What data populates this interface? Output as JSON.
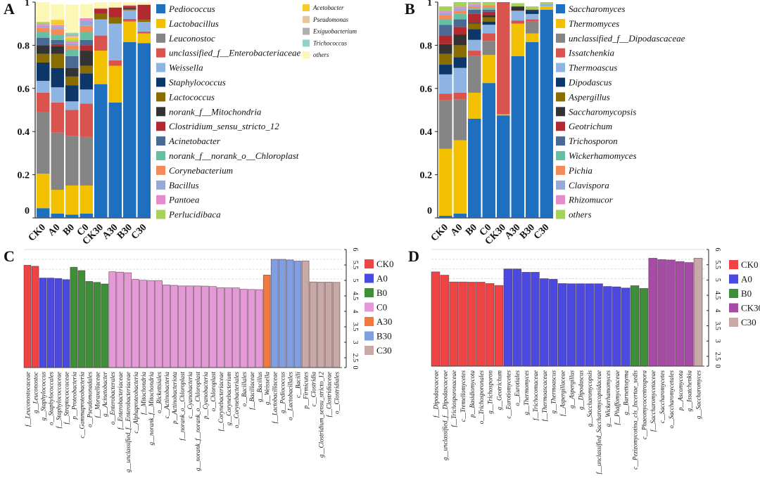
{
  "chart_data": [
    {
      "panel": "A",
      "type": "bar",
      "stacked": true,
      "title": "",
      "xlabel": "",
      "ylabel": "",
      "ylim": [
        0,
        1
      ],
      "yticks": [
        "0",
        "0.2",
        "0.4",
        "0.6",
        "0.8",
        "1"
      ],
      "categories": [
        "CK0",
        "A0",
        "B0",
        "C0",
        "CK30",
        "A30",
        "B30",
        "C30"
      ],
      "legend": "right",
      "series": [
        {
          "name": "Pediococcus",
          "color": "#1f6fbf",
          "values": [
            0.045,
            0.02,
            0.015,
            0.02,
            0.62,
            0.535,
            0.815,
            0.81
          ]
        },
        {
          "name": "Lactobacillus",
          "color": "#f2c000",
          "values": [
            0.16,
            0.11,
            0.135,
            0.13,
            0.155,
            0.17,
            0.095,
            0.045
          ]
        },
        {
          "name": "Leuconostoc",
          "color": "#858585",
          "values": [
            0.285,
            0.265,
            0.23,
            0.225,
            0,
            0,
            0,
            0
          ]
        },
        {
          "name": "unclassified_f__Enterobacteriaceae",
          "color": "#d9534f",
          "values": [
            0.09,
            0.14,
            0.12,
            0.155,
            0.07,
            0.025,
            0.012,
            0.008
          ]
        },
        {
          "name": "Weissella",
          "color": "#8eb4e3",
          "values": [
            0.055,
            0.07,
            0.04,
            0.065,
            0.075,
            0.17,
            0.04,
            0.045
          ]
        },
        {
          "name": "Staphylococcus",
          "color": "#0d3768",
          "values": [
            0.085,
            0.09,
            0.075,
            0.075,
            0,
            0,
            0,
            0
          ]
        },
        {
          "name": "Lactococcus",
          "color": "#8a6d00",
          "values": [
            0.04,
            0.065,
            0.04,
            0.035,
            0.025,
            0.03,
            0.005,
            0.01
          ]
        },
        {
          "name": "norank_f__Mitochondria",
          "color": "#333333",
          "values": [
            0.04,
            0.035,
            0.04,
            0.07,
            0,
            0,
            0.004,
            0
          ]
        },
        {
          "name": "Clostridium_sensu_stricto_12",
          "color": "#b22a2f",
          "values": [
            0,
            0.01,
            0,
            0.025,
            0.025,
            0.045,
            0.012,
            0.07
          ]
        },
        {
          "name": "Acinetobacter",
          "color": "#4a6a94",
          "values": [
            0.035,
            0.02,
            0.055,
            0.025,
            0,
            0,
            0,
            0
          ]
        },
        {
          "name": "norank_f__norank_o__Chloroplast",
          "color": "#66bfa3",
          "values": [
            0.025,
            0.025,
            0.03,
            0.035,
            0,
            0,
            0,
            0
          ]
        },
        {
          "name": "Corynebacterium",
          "color": "#f28a5a",
          "values": [
            0.02,
            0.025,
            0.02,
            0.03,
            0,
            0,
            0,
            0
          ]
        },
        {
          "name": "Bacillus",
          "color": "#98a8d6",
          "values": [
            0.01,
            0.01,
            0.01,
            0.025,
            0,
            0,
            0,
            0
          ]
        },
        {
          "name": "Pantoea",
          "color": "#e58bc9",
          "values": [
            0.008,
            0.008,
            0.008,
            0.01,
            0,
            0,
            0,
            0
          ]
        },
        {
          "name": "Perlucidibaca",
          "color": "#a6d15a",
          "values": [
            0.01,
            0,
            0.008,
            0,
            0,
            0,
            0,
            0
          ]
        },
        {
          "name": "Acetobacter",
          "color": "#f5cc2e",
          "values": [
            0,
            0.025,
            0.008,
            0,
            0,
            0,
            0,
            0
          ]
        },
        {
          "name": "Pseudomonas",
          "color": "#e7c69c",
          "values": [
            0,
            0,
            0.008,
            0,
            0,
            0,
            0.005,
            0
          ]
        },
        {
          "name": "Exiguobacterium",
          "color": "#b0b0b0",
          "values": [
            0,
            0,
            0.008,
            0,
            0,
            0,
            0,
            0
          ]
        },
        {
          "name": "Trichococcus",
          "color": "#8fd3c6",
          "values": [
            0,
            0,
            0.008,
            0,
            0,
            0,
            0,
            0
          ]
        },
        {
          "name": "others",
          "color": "#fdf7b6",
          "values": [
            0.092,
            0.072,
            0.13,
            0.065,
            0.03,
            0.025,
            0.012,
            0.012
          ]
        }
      ]
    },
    {
      "panel": "B",
      "type": "bar",
      "stacked": true,
      "title": "",
      "xlabel": "",
      "ylabel": "",
      "ylim": [
        0,
        1
      ],
      "yticks": [
        "0",
        "0.2",
        "0.4",
        "0.6",
        "0.8",
        "1"
      ],
      "categories": [
        "CK0",
        "A0",
        "B0",
        "C0",
        "CK30",
        "A30",
        "B30",
        "C30"
      ],
      "legend": "right",
      "series": [
        {
          "name": "Saccharomyces",
          "color": "#1f6fbf",
          "values": [
            0.01,
            0.02,
            0.46,
            0.625,
            0.475,
            0.75,
            0.815,
            0.965
          ]
        },
        {
          "name": "Thermomyces",
          "color": "#f2c000",
          "values": [
            0.31,
            0.34,
            0.12,
            0.13,
            0.005,
            0.15,
            0.04,
            0.015
          ]
        },
        {
          "name": "unclassified_f__Dipodascaceae",
          "color": "#858585",
          "values": [
            0.225,
            0.19,
            0.17,
            0.065,
            0,
            0,
            0.055,
            0
          ]
        },
        {
          "name": "Issatchenkia",
          "color": "#d9534f",
          "values": [
            0.03,
            0.03,
            0.025,
            0.035,
            0.52,
            0.015,
            0.01,
            0
          ]
        },
        {
          "name": "Thermoascus",
          "color": "#8eb4e3",
          "values": [
            0.09,
            0.115,
            0.05,
            0.04,
            0,
            0.045,
            0.025,
            0.005
          ]
        },
        {
          "name": "Dipodascus",
          "color": "#0d3768",
          "values": [
            0.045,
            0.05,
            0.05,
            0.015,
            0,
            0,
            0.015,
            0
          ]
        },
        {
          "name": "Aspergillus",
          "color": "#8a6d00",
          "values": [
            0.05,
            0.055,
            0.025,
            0.02,
            0,
            0,
            0,
            0
          ]
        },
        {
          "name": "Saccharomycopsis",
          "color": "#333333",
          "values": [
            0.045,
            0.05,
            0.005,
            0.01,
            0,
            0.02,
            0.005,
            0
          ]
        },
        {
          "name": "Geotrichum",
          "color": "#b22a2f",
          "values": [
            0.04,
            0.035,
            0.04,
            0.015,
            0,
            0,
            0,
            0
          ]
        },
        {
          "name": "Trichosporon",
          "color": "#4a6a94",
          "values": [
            0.05,
            0.035,
            0.02,
            0.01,
            0,
            0,
            0,
            0
          ]
        },
        {
          "name": "Wickerhamomyces",
          "color": "#66bfa3",
          "values": [
            0.025,
            0.025,
            0.005,
            0.01,
            0,
            0,
            0,
            0
          ]
        },
        {
          "name": "Pichia",
          "color": "#f28a5a",
          "values": [
            0.02,
            0.015,
            0.01,
            0.01,
            0,
            0,
            0,
            0
          ]
        },
        {
          "name": "Clavispora",
          "color": "#98a8d6",
          "values": [
            0.01,
            0.01,
            0.005,
            0,
            0,
            0,
            0,
            0.005
          ]
        },
        {
          "name": "Rhizomucor",
          "color": "#e58bc9",
          "values": [
            0.01,
            0.01,
            0.005,
            0,
            0,
            0,
            0,
            0
          ]
        },
        {
          "name": "others",
          "color": "#a6d15a",
          "values": [
            0.02,
            0.02,
            0.01,
            0.015,
            0,
            0.015,
            0.015,
            0.01
          ]
        }
      ]
    },
    {
      "panel": "C",
      "type": "bar",
      "orientation": "vertical",
      "xlabel": "",
      "ylabel": "",
      "ylim": [
        0,
        6
      ],
      "yticks": [
        "0",
        "2.5",
        "3",
        "3.5",
        "4",
        "4.5",
        "5",
        "5.5",
        "6"
      ],
      "axis_side": "right",
      "grid": true,
      "legend": "right",
      "groups": [
        {
          "name": "CK0",
          "color": "#ef4444"
        },
        {
          "name": "A0",
          "color": "#4a4ae0"
        },
        {
          "name": "B0",
          "color": "#3f8f3a"
        },
        {
          "name": "C0",
          "color": "#e59ad8"
        },
        {
          "name": "A30",
          "color": "#ee7a3f"
        },
        {
          "name": "B30",
          "color": "#7f9fe0"
        },
        {
          "name": "C30",
          "color": "#c7a9a6"
        }
      ],
      "bars": [
        {
          "label": "f__Leuconostocaceae",
          "group": "CK0",
          "value": 5.2
        },
        {
          "label": "g__Leuconostoc",
          "group": "CK0",
          "value": 5.15
        },
        {
          "label": "g__Staphylococcus",
          "group": "A0",
          "value": 4.55
        },
        {
          "label": "o__Staphylococcales",
          "group": "A0",
          "value": 4.55
        },
        {
          "label": "f__Staphylococcaceae",
          "group": "A0",
          "value": 4.53
        },
        {
          "label": "f__Streptococcaceae",
          "group": "A0",
          "value": 4.47
        },
        {
          "label": "p__Proteobacteria",
          "group": "B0",
          "value": 5.1
        },
        {
          "label": "c__Gammaproteobacteria",
          "group": "B0",
          "value": 4.93
        },
        {
          "label": "o__Pseudomonadales",
          "group": "B0",
          "value": 4.38
        },
        {
          "label": "f__Moraxellaceae",
          "group": "B0",
          "value": 4.33
        },
        {
          "label": "g__Acinetobacter",
          "group": "B0",
          "value": 4.25
        },
        {
          "label": "o__Enterobacterales",
          "group": "C0",
          "value": 4.87
        },
        {
          "label": "f__Enterobacteriaceae",
          "group": "C0",
          "value": 4.85
        },
        {
          "label": "g__unclassified_f__Enterobacteriaceae",
          "group": "C0",
          "value": 4.82
        },
        {
          "label": "c__Alphaproteobacteria",
          "group": "C0",
          "value": 4.48
        },
        {
          "label": "f__Mitochondria",
          "group": "C0",
          "value": 4.44
        },
        {
          "label": "g__norank_f__Mitochondria",
          "group": "C0",
          "value": 4.42
        },
        {
          "label": "o__Rickettsiales",
          "group": "C0",
          "value": 4.42
        },
        {
          "label": "c__Actinobacteria",
          "group": "C0",
          "value": 4.2
        },
        {
          "label": "p__Actinobacteriota",
          "group": "C0",
          "value": 4.18
        },
        {
          "label": "f__norank_o__Chloroplast",
          "group": "C0",
          "value": 4.15
        },
        {
          "label": "c__Cyanobacteria",
          "group": "C0",
          "value": 4.15
        },
        {
          "label": "g__norank_f__norank_o__Chloroplast",
          "group": "C0",
          "value": 4.15
        },
        {
          "label": "p__Cyanobacteria",
          "group": "C0",
          "value": 4.14
        },
        {
          "label": "o__Chloroplast",
          "group": "C0",
          "value": 4.12
        },
        {
          "label": "f__Corynebacteriaceae",
          "group": "C0",
          "value": 4.06
        },
        {
          "label": "g__Corynebacterium",
          "group": "C0",
          "value": 4.05
        },
        {
          "label": "o__Corynebacteriales",
          "group": "C0",
          "value": 4.05
        },
        {
          "label": "o__Bacillales",
          "group": "C0",
          "value": 3.98
        },
        {
          "label": "f__Bacillaceae",
          "group": "C0",
          "value": 3.97
        },
        {
          "label": "g__Bacillus",
          "group": "C0",
          "value": 3.96
        },
        {
          "label": "g__Weissella",
          "group": "A30",
          "value": 4.7
        },
        {
          "label": "f__Lactobacillaceae",
          "group": "B30",
          "value": 5.5
        },
        {
          "label": "g__Pediococcus",
          "group": "B30",
          "value": 5.5
        },
        {
          "label": "o__Lactobacillales",
          "group": "B30",
          "value": 5.47
        },
        {
          "label": "c__Bacilli",
          "group": "B30",
          "value": 5.41
        },
        {
          "label": "p__Firmicutes",
          "group": "C30",
          "value": 5.42
        },
        {
          "label": "c__Clostridia",
          "group": "C30",
          "value": 4.35
        },
        {
          "label": "g__Clostridium_sensu_stricto_12",
          "group": "C30",
          "value": 4.34
        },
        {
          "label": "f__Clostridiaceae",
          "group": "C30",
          "value": 4.34
        },
        {
          "label": "o__Clostridiales",
          "group": "C30",
          "value": 4.33
        }
      ]
    },
    {
      "panel": "D",
      "type": "bar",
      "orientation": "vertical",
      "xlabel": "",
      "ylabel": "",
      "ylim": [
        0,
        6
      ],
      "yticks": [
        "0",
        "2.5",
        "3",
        "3.5",
        "4",
        "4.5",
        "5",
        "5.5",
        "6"
      ],
      "axis_side": "right",
      "grid": true,
      "legend": "right",
      "groups": [
        {
          "name": "CK0",
          "color": "#ef4444"
        },
        {
          "name": "A0",
          "color": "#4a4ae0"
        },
        {
          "name": "B0",
          "color": "#3f8f3a"
        },
        {
          "name": "CK30",
          "color": "#a64ca6"
        },
        {
          "name": "C30",
          "color": "#c7a9a6"
        }
      ],
      "bars": [
        {
          "label": "f__Dipodascaceae",
          "group": "CK0",
          "value": 4.85
        },
        {
          "label": "g__unclassified_f__Dipodascaceae",
          "group": "CK0",
          "value": 4.68
        },
        {
          "label": "f__Trichosporonaceae",
          "group": "CK0",
          "value": 4.33
        },
        {
          "label": "c__Tremellomycetes",
          "group": "CK0",
          "value": 4.33
        },
        {
          "label": "p__Basidiomycota",
          "group": "CK0",
          "value": 4.32
        },
        {
          "label": "o__Trichosporonales",
          "group": "CK0",
          "value": 4.32
        },
        {
          "label": "g__Trichosporon",
          "group": "CK0",
          "value": 4.25
        },
        {
          "label": "g__Geotrichum",
          "group": "CK0",
          "value": 4.15
        },
        {
          "label": "c__Eurotiomycetes",
          "group": "A0",
          "value": 5.0
        },
        {
          "label": "o__Eurotiales",
          "group": "A0",
          "value": 5.0
        },
        {
          "label": "g__Thermomyces",
          "group": "A0",
          "value": 4.83
        },
        {
          "label": "f__Trichocomaceae",
          "group": "A0",
          "value": 4.83
        },
        {
          "label": "f__Thermoascaceae",
          "group": "A0",
          "value": 4.5
        },
        {
          "label": "g__Thermoascus",
          "group": "A0",
          "value": 4.47
        },
        {
          "label": "f__Aspergillaceae",
          "group": "A0",
          "value": 4.25
        },
        {
          "label": "g__Aspergillus",
          "group": "A0",
          "value": 4.24
        },
        {
          "label": "g__Dipodascus",
          "group": "A0",
          "value": 4.24
        },
        {
          "label": "g__Saccharomycopsis",
          "group": "A0",
          "value": 4.24
        },
        {
          "label": "f__unclassified_Saccharomycopsidaceae",
          "group": "A0",
          "value": 4.24
        },
        {
          "label": "g__Wickerhamomyces",
          "group": "A0",
          "value": 4.1
        },
        {
          "label": "f__Phaffomycetaceae",
          "group": "A0",
          "value": 4.08
        },
        {
          "label": "g__Barnettozyma",
          "group": "A0",
          "value": 4.02
        },
        {
          "label": "c__Pezizomycotina_cls_Incertae_sedis",
          "group": "B0",
          "value": 4.14
        },
        {
          "label": "c__Phaeomycocentrospora",
          "group": "B0",
          "value": 4.0
        },
        {
          "label": "f__Saccharomycetaceae",
          "group": "CK30",
          "value": 5.55
        },
        {
          "label": "c__Saccharomycetes",
          "group": "CK30",
          "value": 5.48
        },
        {
          "label": "o__Saccharomycetales",
          "group": "CK30",
          "value": 5.46
        },
        {
          "label": "p__Ascomycota",
          "group": "CK30",
          "value": 5.38
        },
        {
          "label": "g__Issatchenkia",
          "group": "CK30",
          "value": 5.33
        },
        {
          "label": "g__Saccharomyces",
          "group": "C30",
          "value": 5.55
        }
      ]
    }
  ]
}
